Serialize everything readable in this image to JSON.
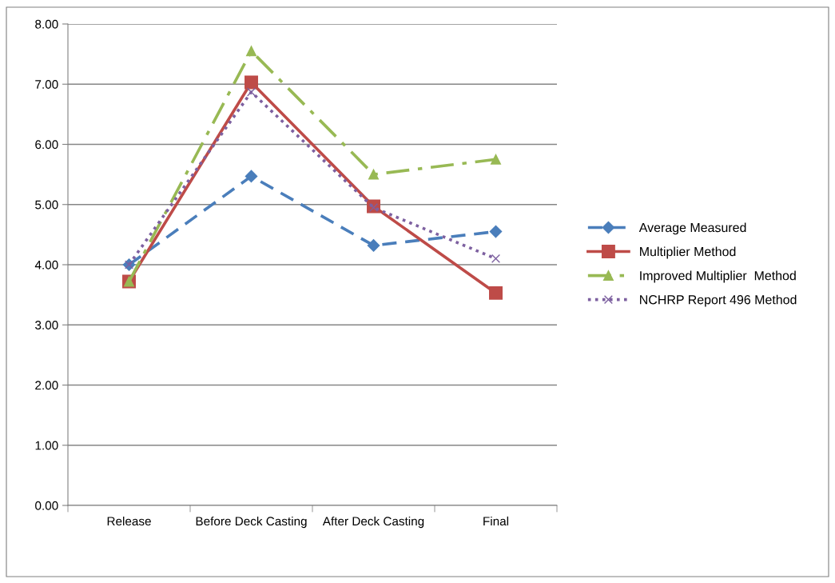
{
  "chart_data": {
    "type": "line",
    "categories": [
      "Release",
      "Before Deck Casting",
      "After Deck Casting",
      "Final"
    ],
    "series": [
      {
        "name": "Average Measured",
        "color": "#4a7ebb",
        "values": [
          4.0,
          5.47,
          4.32,
          4.55
        ],
        "marker": "diamond",
        "line_style": "dashed"
      },
      {
        "name": "Multiplier Method",
        "color": "#be4b48",
        "values": [
          3.72,
          7.03,
          4.97,
          3.53
        ],
        "marker": "square",
        "line_style": "solid"
      },
      {
        "name": "Improved Multiplier  Method",
        "color": "#98b954",
        "values": [
          3.72,
          7.55,
          5.5,
          5.75
        ],
        "marker": "triangle",
        "line_style": "dashdot"
      },
      {
        "name": "NCHRP Report 496 Method",
        "color": "#7d60a0",
        "values": [
          4.0,
          6.87,
          4.95,
          4.1
        ],
        "marker": "cross",
        "line_style": "dotted"
      }
    ],
    "ylim": [
      0,
      8
    ],
    "yticks": [
      {
        "value": 0,
        "label": "0.00"
      },
      {
        "value": 1,
        "label": "1.00"
      },
      {
        "value": 2,
        "label": "2.00"
      },
      {
        "value": 3,
        "label": "3.00"
      },
      {
        "value": 4,
        "label": "4.00"
      },
      {
        "value": 5,
        "label": "5.00"
      },
      {
        "value": 6,
        "label": "6.00"
      },
      {
        "value": 7,
        "label": "7.00"
      },
      {
        "value": 8,
        "label": "8.00"
      }
    ],
    "grid": "y",
    "legend": "right"
  }
}
